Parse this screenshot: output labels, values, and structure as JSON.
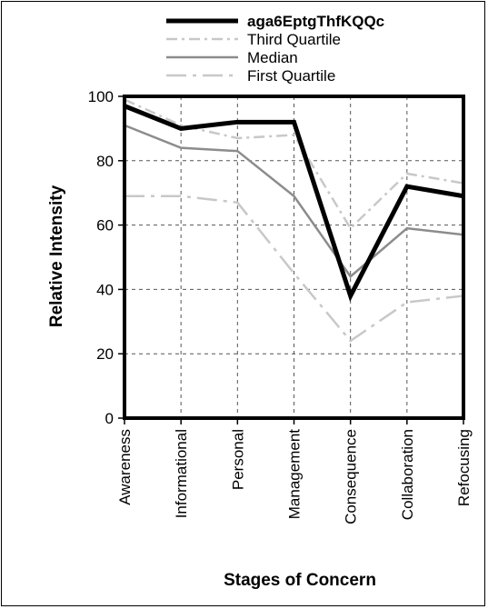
{
  "chart_data": {
    "type": "line",
    "title": "",
    "xlabel": "Stages of Concern",
    "ylabel": "Relative Intensity",
    "ylim": [
      0,
      100
    ],
    "yticks": [
      0,
      20,
      40,
      60,
      80,
      100
    ],
    "grid": true,
    "legend_position": "top",
    "categories": [
      "Awareness",
      "Informational",
      "Personal",
      "Management",
      "Consequence",
      "Collaboration",
      "Refocusing"
    ],
    "series": [
      {
        "name": "aga6EptgThfKQQc",
        "style": "solid-bold",
        "color": "#000000",
        "values": [
          97,
          90,
          92,
          92,
          38,
          72,
          69
        ]
      },
      {
        "name": "Third Quartile",
        "style": "dash-dot",
        "color": "#c8c8c8",
        "values": [
          99,
          91,
          87,
          88,
          59,
          76,
          73
        ]
      },
      {
        "name": "Median",
        "style": "solid",
        "color": "#8c8c8c",
        "values": [
          91,
          84,
          83,
          69,
          44,
          59,
          57
        ]
      },
      {
        "name": "First Quartile",
        "style": "long-dash-dot",
        "color": "#c8c8c8",
        "values": [
          69,
          69,
          67,
          45,
          24,
          36,
          38
        ]
      }
    ]
  }
}
